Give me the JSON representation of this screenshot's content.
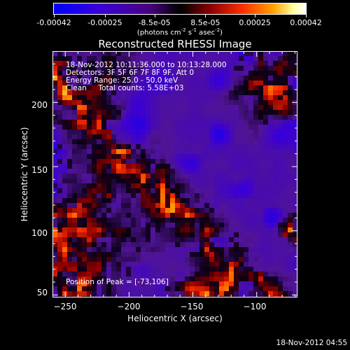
{
  "colorbar": {
    "tick_labels": [
      "-0.00042",
      "-0.00025",
      "-8.5e-05",
      "8.5e-05",
      "0.00025",
      "0.00042"
    ],
    "tick_values": [
      -0.00042,
      -0.00025,
      -8.5e-05,
      8.5e-05,
      0.00025,
      0.00042
    ],
    "range": [
      -0.00042,
      0.00042
    ],
    "unit_prefix": "(photons cm",
    "unit_exp1": "-2",
    "unit_mid": " s",
    "unit_exp2": "-1",
    "unit_mid2": " asec",
    "unit_exp3": "-2",
    "unit_suffix": ")",
    "colors": [
      "#0000ff",
      "#4400cc",
      "#440088",
      "#000000",
      "#880000",
      "#ff3300",
      "#ffaa00",
      "#ffffaa",
      "#ffffff"
    ]
  },
  "title": "Reconstructed RHESSI Image",
  "info_lines": [
    "18-Nov-2012 10:11:36.000 to 10:13:28.000",
    "Detectors: 3F 5F 6F 7F 8F 9F, Att 0",
    "Energy Range: 25.0 - 50.0 keV",
    "Clean     Total counts: 5.58E+03"
  ],
  "peak_text": "Position of Peak = [-73,106]",
  "axes": {
    "xlabel": "Heliocentric X (arcsec)",
    "ylabel": "Heliocentric Y (arcsec)",
    "xlim": [
      -260,
      -68
    ],
    "ylim": [
      48,
      240
    ],
    "xticks": [
      -250,
      -200,
      -150,
      -100
    ],
    "xtick_labels": [
      "−250",
      "−200",
      "−150",
      "−100"
    ],
    "yticks": [
      50,
      100,
      150,
      200
    ],
    "ytick_labels": [
      "50",
      "100",
      "150",
      "200"
    ]
  },
  "chart_data": {
    "type": "heatmap",
    "title": "Reconstructed RHESSI Image",
    "xlabel": "Heliocentric X (arcsec)",
    "ylabel": "Heliocentric Y (arcsec)",
    "xlim": [
      -260,
      -68
    ],
    "ylim": [
      48,
      240
    ],
    "peak": [
      -73,
      106
    ],
    "value_range": [
      -0.00042,
      0.00042
    ]
  },
  "datestamp": "18-Nov-2012 04:55"
}
